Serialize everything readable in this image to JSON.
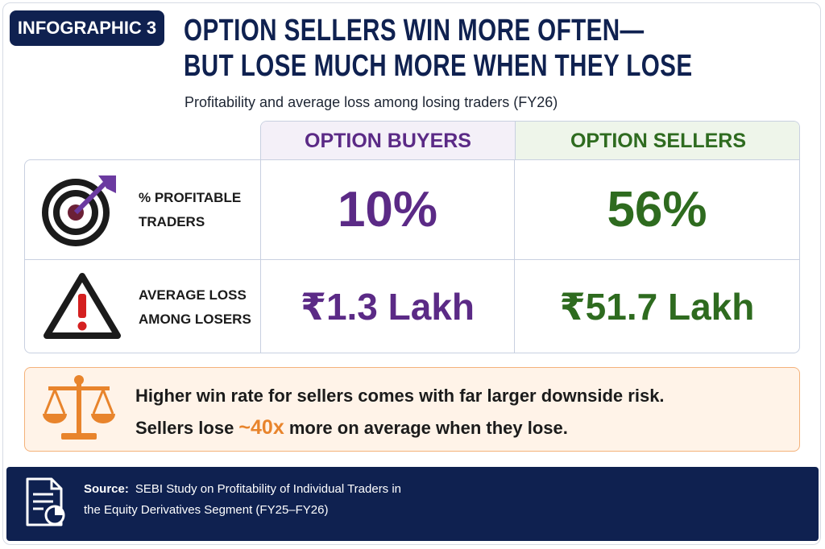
{
  "badge": "INFOGRAPHIC 3",
  "title": [
    "OPTION SELLERS WIN MORE OFTEN—",
    "BUT LOSE MUCH MORE WHEN THEY LOSE"
  ],
  "subtitle": "Profitability and average loss among losing traders (FY26)",
  "table": {
    "columns": [
      "OPTION BUYERS",
      "OPTION SELLERS"
    ],
    "rows": [
      {
        "label": [
          "% PROFITABLE",
          "TRADERS"
        ],
        "cells": [
          "10%",
          "56%"
        ]
      },
      {
        "label": [
          "AVERAGE LOSS",
          "AMONG LOSERS"
        ],
        "cells": [
          "₹1.3 Lakh",
          "₹51.7 Lakh"
        ]
      }
    ]
  },
  "callout": {
    "line1": "Higher win rate for sellers comes with far larger downside risk.",
    "line2": [
      "Sellers lose ",
      "~40x",
      " more on average when they lose."
    ]
  },
  "source": {
    "label": "Source:",
    "text": [
      "SEBI Study on Profitability of Individual Traders in",
      "the Equity Derivatives Segment (FY25–FY26)"
    ]
  }
}
